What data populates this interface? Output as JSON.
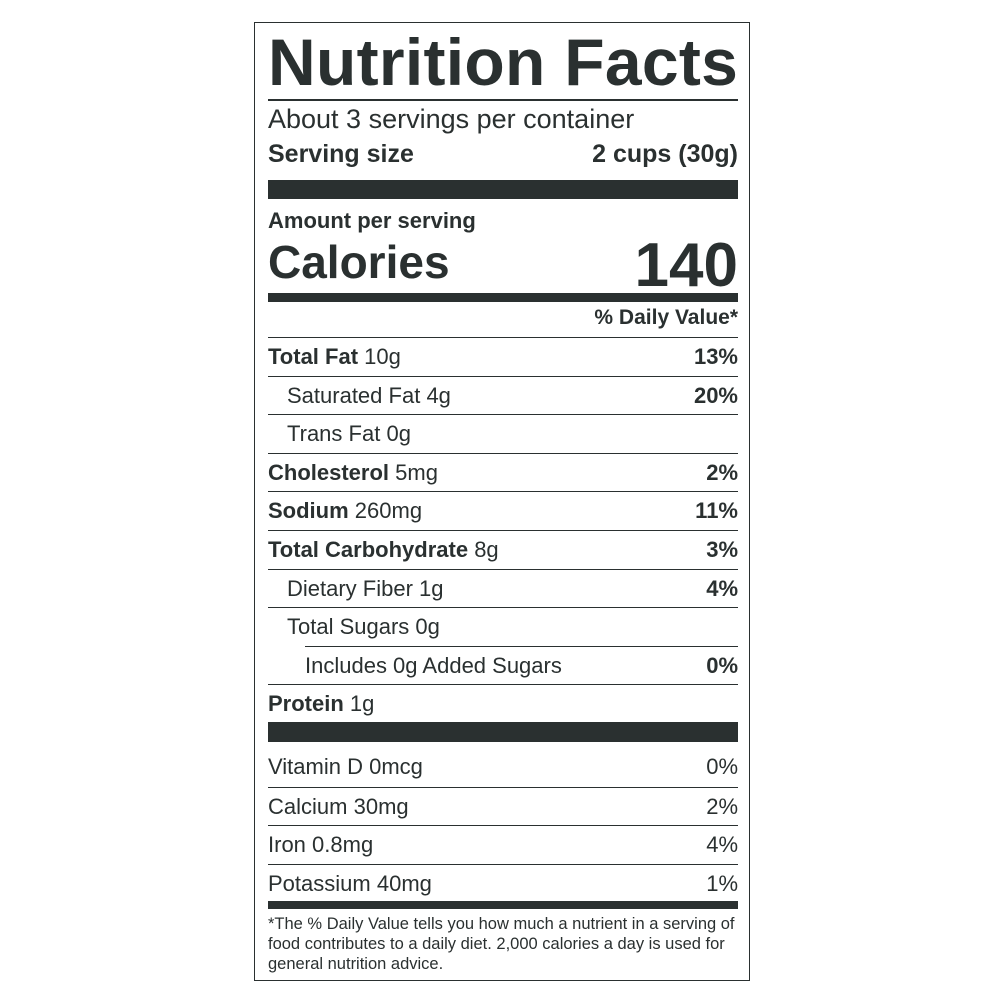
{
  "title": "Nutrition Facts",
  "servings_per_container": "About 3 servings per container",
  "serving_size": {
    "label": "Serving size",
    "value": "2 cups (30g)"
  },
  "amount_per_serving": "Amount per serving",
  "calories": {
    "label": "Calories",
    "value": "140"
  },
  "daily_value_header": "% Daily Value*",
  "nutrients": [
    {
      "name": "Total Fat",
      "amount": "10g",
      "dv": "13%",
      "bold": true,
      "indent": 0
    },
    {
      "name": "Saturated Fat",
      "amount": "4g",
      "dv": "20%",
      "bold": false,
      "indent": 1
    },
    {
      "name": "Trans Fat",
      "amount": "0g",
      "dv": "",
      "bold": false,
      "indent": 1
    },
    {
      "name": "Cholesterol",
      "amount": "5mg",
      "dv": "2%",
      "bold": true,
      "indent": 0
    },
    {
      "name": "Sodium",
      "amount": "260mg",
      "dv": "11%",
      "bold": true,
      "indent": 0
    },
    {
      "name": "Total Carbohydrate",
      "amount": "8g",
      "dv": "3%",
      "bold": true,
      "indent": 0
    },
    {
      "name": "Dietary Fiber",
      "amount": "1g",
      "dv": "4%",
      "bold": false,
      "indent": 1
    },
    {
      "name": "Total Sugars",
      "amount": "0g",
      "dv": "",
      "bold": false,
      "indent": 1
    },
    {
      "name": "Includes 0g Added Sugars",
      "amount": "",
      "dv": "0%",
      "bold": false,
      "indent": 2
    },
    {
      "name": "Protein",
      "amount": "1g",
      "dv": "",
      "bold": true,
      "indent": 0
    }
  ],
  "vitamins": [
    {
      "name": "Vitamin D",
      "amount": "0mcg",
      "dv": "0%"
    },
    {
      "name": "Calcium",
      "amount": "30mg",
      "dv": "2%"
    },
    {
      "name": "Iron",
      "amount": "0.8mg",
      "dv": "4%"
    },
    {
      "name": "Potassium",
      "amount": "40mg",
      "dv": "1%"
    }
  ],
  "footnote": "*The % Daily Value tells you how much a nutrient in a serving of food contributes to a daily diet. 2,000 calories a day is used for general nutrition advice.",
  "colors": {
    "ink": "#2a3030",
    "background": "#ffffff"
  }
}
